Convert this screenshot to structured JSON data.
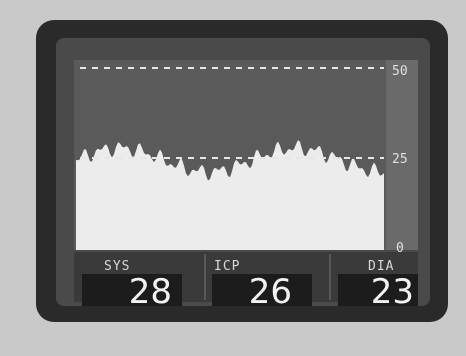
{
  "scale": {
    "ticks": [
      50,
      25,
      0
    ]
  },
  "readouts": [
    {
      "label": "SYS",
      "value": 28
    },
    {
      "label": "ICP",
      "value": 26
    },
    {
      "label": "DIA",
      "value": 23
    }
  ]
}
